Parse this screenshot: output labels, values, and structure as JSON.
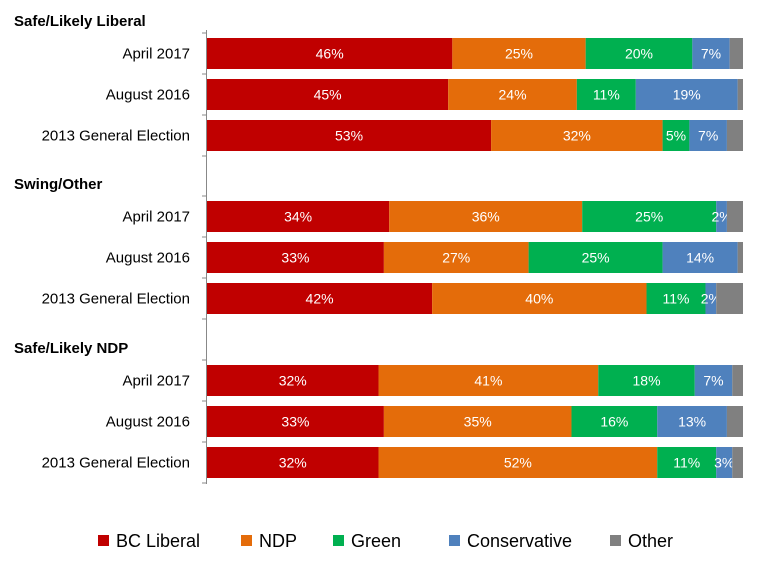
{
  "chart_data": {
    "type": "bar",
    "orientation": "horizontal",
    "stacked": true,
    "percent_scale": true,
    "xlim": [
      0,
      100
    ],
    "legend_position": "bottom",
    "grid": false,
    "series": [
      {
        "name": "BC Liberal",
        "color": "#C00000"
      },
      {
        "name": "NDP",
        "color": "#E46C0A"
      },
      {
        "name": "Green",
        "color": "#00B050"
      },
      {
        "name": "Conservative",
        "color": "#4F81BD"
      },
      {
        "name": "Other",
        "color": "#808080"
      }
    ],
    "groups": [
      {
        "title": "Safe/Likely Liberal",
        "rows": [
          {
            "label": "April 2017",
            "values": [
              46,
              25,
              20,
              7,
              2.5
            ],
            "labels": [
              "46%",
              "25%",
              "20%",
              "7%",
              ""
            ]
          },
          {
            "label": "August 2016",
            "values": [
              45,
              24,
              11,
              19,
              1
            ],
            "labels": [
              "45%",
              "24%",
              "11%",
              "19%",
              ""
            ]
          },
          {
            "label": "2013 General Election",
            "values": [
              53,
              32,
              5,
              7,
              3
            ],
            "labels": [
              "53%",
              "32%",
              "5%",
              "7%",
              ""
            ]
          }
        ]
      },
      {
        "title": "Swing/Other",
        "rows": [
          {
            "label": "April 2017",
            "values": [
              34,
              36,
              25,
              2,
              3
            ],
            "labels": [
              "34%",
              "36%",
              "25%",
              "2%",
              ""
            ]
          },
          {
            "label": "August 2016",
            "values": [
              33,
              27,
              25,
              14,
              1
            ],
            "labels": [
              "33%",
              "27%",
              "25%",
              "14%",
              ""
            ]
          },
          {
            "label": "2013 General Election",
            "values": [
              42,
              40,
              11,
              2,
              5
            ],
            "labels": [
              "42%",
              "40%",
              "11%",
              "2%",
              ""
            ]
          }
        ]
      },
      {
        "title": "Safe/Likely NDP",
        "rows": [
          {
            "label": "April 2017",
            "values": [
              32,
              41,
              18,
              7,
              2
            ],
            "labels": [
              "32%",
              "41%",
              "18%",
              "7%",
              ""
            ]
          },
          {
            "label": "August 2016",
            "values": [
              33,
              35,
              16,
              13,
              3
            ],
            "labels": [
              "33%",
              "35%",
              "16%",
              "13%",
              ""
            ]
          },
          {
            "label": "2013 General Election",
            "values": [
              32,
              52,
              11,
              3,
              2
            ],
            "labels": [
              "32%",
              "52%",
              "11%",
              "3%",
              ""
            ]
          }
        ]
      }
    ]
  }
}
